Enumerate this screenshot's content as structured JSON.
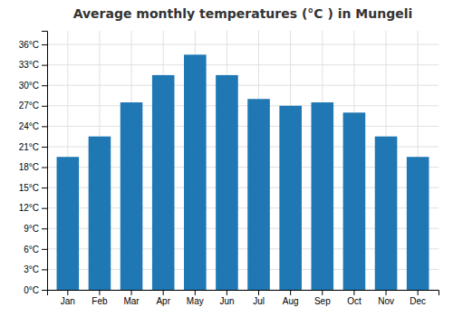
{
  "chart_data": {
    "type": "bar",
    "title": "Average monthly temperatures (°C ) in Mungeli",
    "categories": [
      "Jan",
      "Feb",
      "Mar",
      "Apr",
      "May",
      "Jun",
      "Jul",
      "Aug",
      "Sep",
      "Oct",
      "Nov",
      "Dec"
    ],
    "values": [
      19.5,
      22.5,
      27.5,
      31.5,
      34.5,
      31.5,
      28.0,
      27.0,
      27.5,
      26.0,
      22.5,
      19.5
    ],
    "ylim": [
      0,
      38
    ],
    "yticks": [
      {
        "value": 0,
        "label": "0°C"
      },
      {
        "value": 3,
        "label": "3°C"
      },
      {
        "value": 6,
        "label": "6°C"
      },
      {
        "value": 9,
        "label": "9°C"
      },
      {
        "value": 12,
        "label": "12°C"
      },
      {
        "value": 15,
        "label": "15°C"
      },
      {
        "value": 18,
        "label": "18°C"
      },
      {
        "value": 21,
        "label": "21°C"
      },
      {
        "value": 24,
        "label": "24°C"
      },
      {
        "value": 27,
        "label": "27°C"
      },
      {
        "value": 30,
        "label": "30°C"
      },
      {
        "value": 33,
        "label": "33°C"
      },
      {
        "value": 36,
        "label": "36°C"
      }
    ],
    "grid": true
  }
}
